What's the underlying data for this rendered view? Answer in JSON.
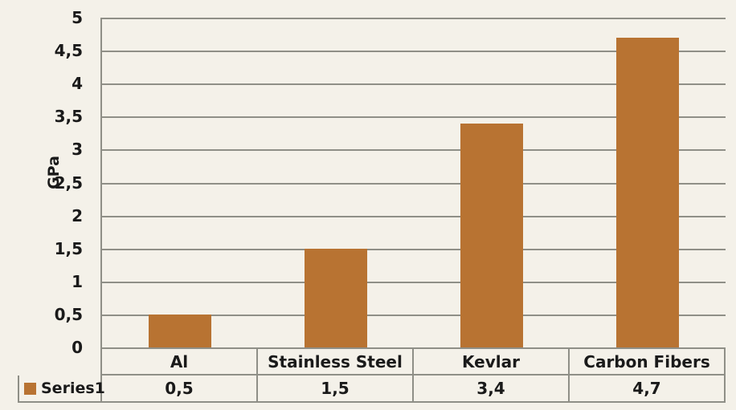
{
  "chart_data": {
    "type": "bar",
    "title": "",
    "xlabel": "",
    "ylabel": "GPa",
    "categories": [
      "Al",
      "Stainless Steel",
      "Kevlar",
      "Carbon Fibers"
    ],
    "series": [
      {
        "name": "Series1",
        "values": [
          0.5,
          1.5,
          3.4,
          4.7
        ]
      }
    ],
    "value_labels": [
      "0,5",
      "1,5",
      "3,4",
      "4,7"
    ],
    "y_ticks": [
      0,
      0.5,
      1,
      1.5,
      2,
      2.5,
      3,
      3.5,
      4,
      4.5,
      5
    ],
    "y_tick_labels": [
      "0",
      "0,5",
      "1",
      "1,5",
      "2",
      "2,5",
      "3",
      "3,5",
      "4",
      "4,5",
      "5"
    ],
    "ylim": [
      0,
      5
    ],
    "grid": true,
    "legend_position": "data-table",
    "data_table_shown": true,
    "colors": {
      "bar": "#b87332",
      "background": "#f4f1e9",
      "grid": "#8f8f87",
      "text": "#1a1a1a"
    }
  }
}
